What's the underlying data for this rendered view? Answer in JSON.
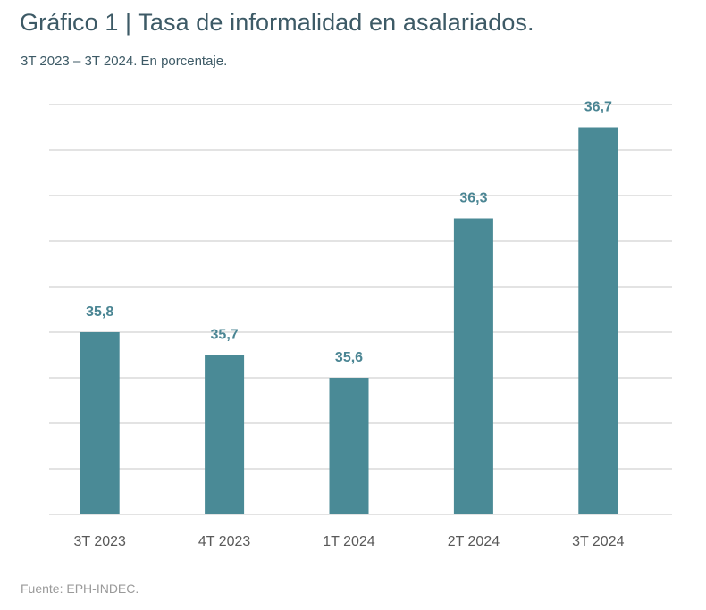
{
  "chart_data": {
    "type": "bar",
    "title": "Gráfico 1 | Tasa de informalidad en asalariados.",
    "subtitle": "3T 2023 – 3T 2024. En porcentaje.",
    "categories": [
      "3T 2023",
      "4T 2023",
      "1T 2024",
      "2T 2024",
      "3T 2024"
    ],
    "values": [
      35.8,
      35.7,
      35.6,
      36.3,
      36.7
    ],
    "value_labels": [
      "35,8",
      "35,7",
      "35,6",
      "36,3",
      "36,7"
    ],
    "xlabel": "",
    "ylabel": "",
    "ylim": [
      35.0,
      36.8
    ],
    "grid_step": 0.2,
    "grid": true,
    "legend": "none",
    "source": "Fuente: EPH-INDEC.",
    "bar_color": "#4a8a96",
    "label_color": "#4a8593"
  }
}
